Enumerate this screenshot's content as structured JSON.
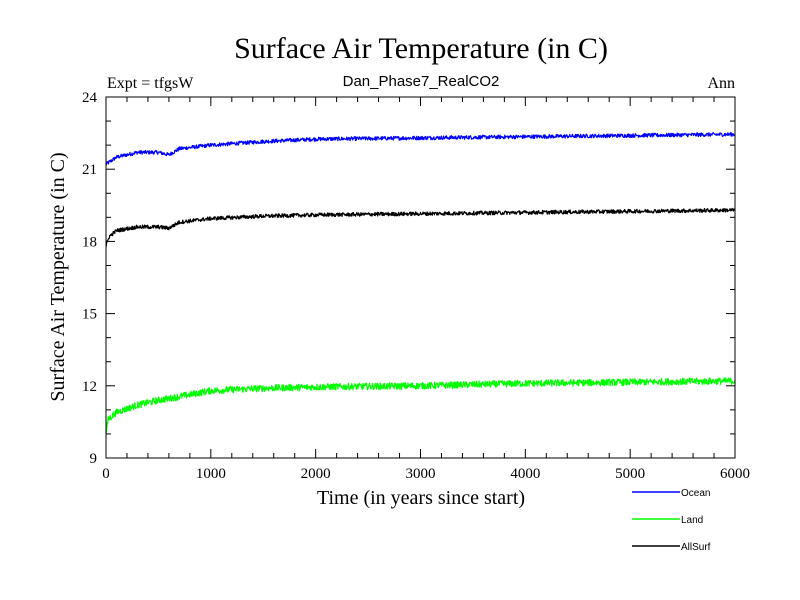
{
  "chart_data": {
    "type": "line",
    "title": "Surface Air Temperature (in C)",
    "subtitle_left": "Expt = tfgsW",
    "subtitle_center": "Dan_Phase7_RealCO2",
    "subtitle_right": "Ann",
    "xlabel": "Time (in years since start)",
    "ylabel": "Surface Air Temperature (in C)",
    "xlim": [
      0,
      6000
    ],
    "ylim": [
      9,
      24
    ],
    "x_major_ticks": [
      0,
      1000,
      2000,
      3000,
      4000,
      5000,
      6000
    ],
    "x_tick_labels": [
      "0",
      "1000",
      "2000",
      "3000",
      "4000",
      "5000",
      "6000"
    ],
    "y_major_ticks": [
      9,
      12,
      15,
      18,
      21,
      24
    ],
    "y_tick_labels": [
      "9",
      "12",
      "15",
      "18",
      "21",
      "24"
    ],
    "grid": false,
    "legend_position": "bottom-right",
    "series": [
      {
        "name": "Ocean",
        "color": "#0000ff",
        "noise": 0.08,
        "points": [
          [
            0,
            21.2
          ],
          [
            100,
            21.5
          ],
          [
            300,
            21.7
          ],
          [
            500,
            21.7
          ],
          [
            600,
            21.6
          ],
          [
            700,
            21.85
          ],
          [
            1000,
            22.0
          ],
          [
            1500,
            22.15
          ],
          [
            2000,
            22.25
          ],
          [
            3000,
            22.3
          ],
          [
            4000,
            22.35
          ],
          [
            5000,
            22.4
          ],
          [
            6000,
            22.45
          ]
        ]
      },
      {
        "name": "Land",
        "color": "#00ff00",
        "noise": 0.14,
        "points": [
          [
            0,
            10.0
          ],
          [
            20,
            10.6
          ],
          [
            100,
            10.9
          ],
          [
            300,
            11.2
          ],
          [
            500,
            11.4
          ],
          [
            700,
            11.55
          ],
          [
            1000,
            11.8
          ],
          [
            1500,
            11.9
          ],
          [
            2000,
            11.95
          ],
          [
            3000,
            12.0
          ],
          [
            4000,
            12.1
          ],
          [
            5000,
            12.15
          ],
          [
            6000,
            12.2
          ]
        ]
      },
      {
        "name": "AllSurf",
        "color": "#000000",
        "noise": 0.08,
        "points": [
          [
            0,
            17.8
          ],
          [
            30,
            18.2
          ],
          [
            100,
            18.45
          ],
          [
            300,
            18.6
          ],
          [
            500,
            18.6
          ],
          [
            600,
            18.55
          ],
          [
            700,
            18.8
          ],
          [
            1000,
            18.95
          ],
          [
            1500,
            19.05
          ],
          [
            2000,
            19.1
          ],
          [
            3000,
            19.15
          ],
          [
            4000,
            19.2
          ],
          [
            5000,
            19.25
          ],
          [
            6000,
            19.3
          ]
        ]
      }
    ]
  }
}
